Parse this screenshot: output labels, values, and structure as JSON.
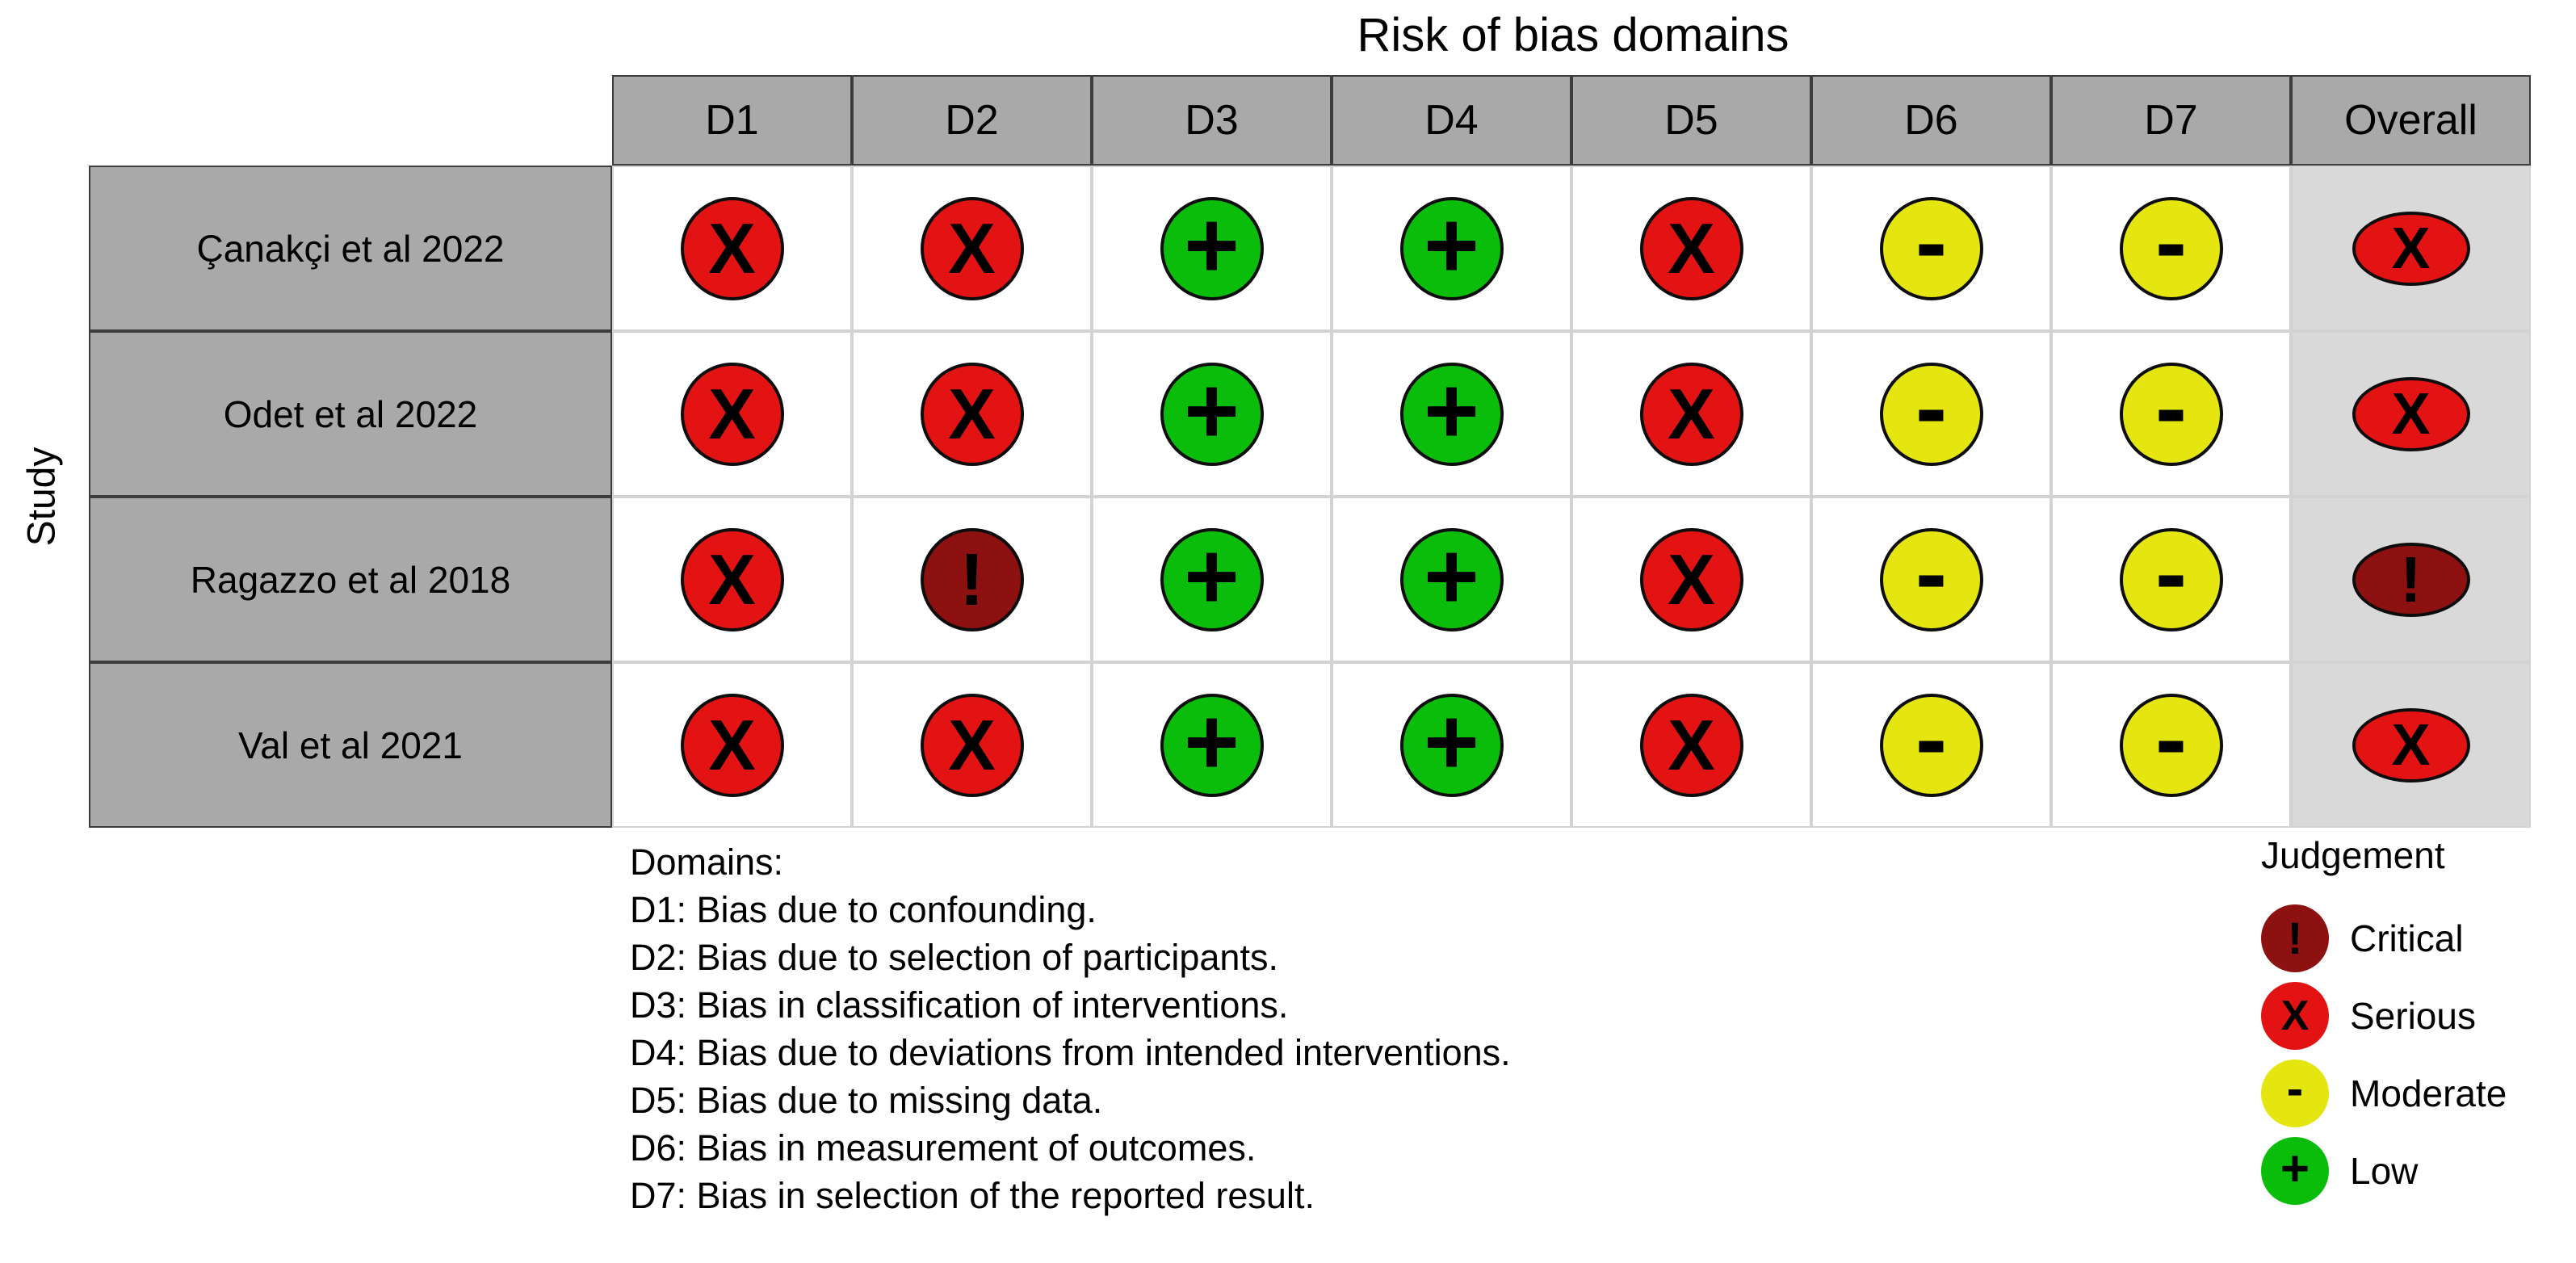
{
  "title": "Risk of bias domains",
  "y_axis_label": "Study",
  "columns": [
    "D1",
    "D2",
    "D3",
    "D4",
    "D5",
    "D6",
    "D7",
    "Overall"
  ],
  "rows": [
    {
      "study": "Çanakçi et al 2022",
      "judgements": [
        "serious",
        "serious",
        "low",
        "low",
        "serious",
        "moderate",
        "moderate",
        "serious"
      ]
    },
    {
      "study": "Odet et al 2022",
      "judgements": [
        "serious",
        "serious",
        "low",
        "low",
        "serious",
        "moderate",
        "moderate",
        "serious"
      ]
    },
    {
      "study": "Ragazzo et al 2018",
      "judgements": [
        "serious",
        "critical",
        "low",
        "low",
        "serious",
        "moderate",
        "moderate",
        "critical"
      ]
    },
    {
      "study": "Val et al 2021",
      "judgements": [
        "serious",
        "serious",
        "low",
        "low",
        "serious",
        "moderate",
        "moderate",
        "serious"
      ]
    }
  ],
  "judgements": {
    "critical": {
      "label": "Critical",
      "symbol": "!",
      "color": "#8e1111"
    },
    "serious": {
      "label": "Serious",
      "symbol": "X",
      "color": "#e41313"
    },
    "moderate": {
      "label": "Moderate",
      "symbol": "-",
      "color": "#e5e50f"
    },
    "low": {
      "label": "Low",
      "symbol": "+",
      "color": "#0bbd0b"
    }
  },
  "domains_note": {
    "heading": "Domains:",
    "items": [
      "D1: Bias due to confounding.",
      "D2: Bias due to selection of participants.",
      "D3: Bias in classification of interventions.",
      "D4: Bias due to deviations from intended interventions.",
      "D5: Bias due to missing data.",
      "D6: Bias in measurement of outcomes.",
      "D7: Bias in selection of the reported result."
    ]
  },
  "legend": {
    "heading": "Judgement",
    "order": [
      "critical",
      "serious",
      "moderate",
      "low"
    ]
  },
  "colors": {
    "header_bg": "#a9a9a9",
    "overall_column_bg": "#d9d9d9",
    "grid_line": "#d2d2d2",
    "table_border": "#3d3d3d",
    "background": "#ffffff",
    "symbol": "#000000"
  },
  "chart_data": {
    "type": "table",
    "title": "Risk of bias domains",
    "y_label": "Study",
    "columns": [
      "D1",
      "D2",
      "D3",
      "D4",
      "D5",
      "D6",
      "D7",
      "Overall"
    ],
    "studies": [
      "Çanakçi et al 2022",
      "Odet et al 2022",
      "Ragazzo et al 2018",
      "Val et al 2021"
    ],
    "values": [
      [
        "Serious",
        "Serious",
        "Low",
        "Low",
        "Serious",
        "Moderate",
        "Moderate",
        "Serious"
      ],
      [
        "Serious",
        "Serious",
        "Low",
        "Low",
        "Serious",
        "Moderate",
        "Moderate",
        "Serious"
      ],
      [
        "Serious",
        "Critical",
        "Low",
        "Low",
        "Serious",
        "Moderate",
        "Moderate",
        "Critical"
      ],
      [
        "Serious",
        "Serious",
        "Low",
        "Low",
        "Serious",
        "Moderate",
        "Moderate",
        "Serious"
      ]
    ],
    "legend_entries": [
      {
        "label": "Critical",
        "symbol": "!",
        "color": "#8e1111"
      },
      {
        "label": "Serious",
        "symbol": "X",
        "color": "#e41313"
      },
      {
        "label": "Moderate",
        "symbol": "-",
        "color": "#e5e50f"
      },
      {
        "label": "Low",
        "symbol": "+",
        "color": "#0bbd0b"
      }
    ],
    "legend_position": "bottom-right",
    "footnote_heading": "Domains:",
    "footnotes": [
      "D1: Bias due to confounding.",
      "D2: Bias due to selection of participants.",
      "D3: Bias in classification of interventions.",
      "D4: Bias due to deviations from intended interventions.",
      "D5: Bias due to missing data.",
      "D6: Bias in measurement of outcomes.",
      "D7: Bias in selection of the reported result."
    ]
  }
}
